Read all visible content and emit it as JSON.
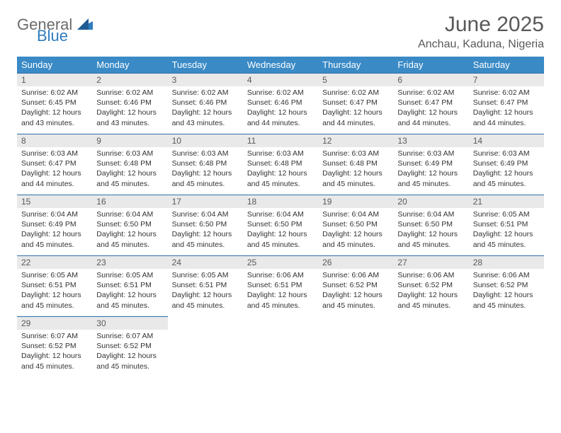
{
  "brand": {
    "general": "General",
    "blue": "Blue"
  },
  "title": "June 2025",
  "location": "Anchau, Kaduna, Nigeria",
  "colors": {
    "header_bg": "#3a8ac6",
    "header_text": "#ffffff",
    "daynum_bg": "#e9e9e9",
    "daynum_border": "#2f6fa8",
    "title_color": "#595959",
    "body_text": "#333333"
  },
  "weekdays": [
    "Sunday",
    "Monday",
    "Tuesday",
    "Wednesday",
    "Thursday",
    "Friday",
    "Saturday"
  ],
  "days": [
    {
      "n": "1",
      "sr": "6:02 AM",
      "ss": "6:45 PM",
      "dl": "12 hours and 43 minutes."
    },
    {
      "n": "2",
      "sr": "6:02 AM",
      "ss": "6:46 PM",
      "dl": "12 hours and 43 minutes."
    },
    {
      "n": "3",
      "sr": "6:02 AM",
      "ss": "6:46 PM",
      "dl": "12 hours and 43 minutes."
    },
    {
      "n": "4",
      "sr": "6:02 AM",
      "ss": "6:46 PM",
      "dl": "12 hours and 44 minutes."
    },
    {
      "n": "5",
      "sr": "6:02 AM",
      "ss": "6:47 PM",
      "dl": "12 hours and 44 minutes."
    },
    {
      "n": "6",
      "sr": "6:02 AM",
      "ss": "6:47 PM",
      "dl": "12 hours and 44 minutes."
    },
    {
      "n": "7",
      "sr": "6:02 AM",
      "ss": "6:47 PM",
      "dl": "12 hours and 44 minutes."
    },
    {
      "n": "8",
      "sr": "6:03 AM",
      "ss": "6:47 PM",
      "dl": "12 hours and 44 minutes."
    },
    {
      "n": "9",
      "sr": "6:03 AM",
      "ss": "6:48 PM",
      "dl": "12 hours and 45 minutes."
    },
    {
      "n": "10",
      "sr": "6:03 AM",
      "ss": "6:48 PM",
      "dl": "12 hours and 45 minutes."
    },
    {
      "n": "11",
      "sr": "6:03 AM",
      "ss": "6:48 PM",
      "dl": "12 hours and 45 minutes."
    },
    {
      "n": "12",
      "sr": "6:03 AM",
      "ss": "6:48 PM",
      "dl": "12 hours and 45 minutes."
    },
    {
      "n": "13",
      "sr": "6:03 AM",
      "ss": "6:49 PM",
      "dl": "12 hours and 45 minutes."
    },
    {
      "n": "14",
      "sr": "6:03 AM",
      "ss": "6:49 PM",
      "dl": "12 hours and 45 minutes."
    },
    {
      "n": "15",
      "sr": "6:04 AM",
      "ss": "6:49 PM",
      "dl": "12 hours and 45 minutes."
    },
    {
      "n": "16",
      "sr": "6:04 AM",
      "ss": "6:50 PM",
      "dl": "12 hours and 45 minutes."
    },
    {
      "n": "17",
      "sr": "6:04 AM",
      "ss": "6:50 PM",
      "dl": "12 hours and 45 minutes."
    },
    {
      "n": "18",
      "sr": "6:04 AM",
      "ss": "6:50 PM",
      "dl": "12 hours and 45 minutes."
    },
    {
      "n": "19",
      "sr": "6:04 AM",
      "ss": "6:50 PM",
      "dl": "12 hours and 45 minutes."
    },
    {
      "n": "20",
      "sr": "6:04 AM",
      "ss": "6:50 PM",
      "dl": "12 hours and 45 minutes."
    },
    {
      "n": "21",
      "sr": "6:05 AM",
      "ss": "6:51 PM",
      "dl": "12 hours and 45 minutes."
    },
    {
      "n": "22",
      "sr": "6:05 AM",
      "ss": "6:51 PM",
      "dl": "12 hours and 45 minutes."
    },
    {
      "n": "23",
      "sr": "6:05 AM",
      "ss": "6:51 PM",
      "dl": "12 hours and 45 minutes."
    },
    {
      "n": "24",
      "sr": "6:05 AM",
      "ss": "6:51 PM",
      "dl": "12 hours and 45 minutes."
    },
    {
      "n": "25",
      "sr": "6:06 AM",
      "ss": "6:51 PM",
      "dl": "12 hours and 45 minutes."
    },
    {
      "n": "26",
      "sr": "6:06 AM",
      "ss": "6:52 PM",
      "dl": "12 hours and 45 minutes."
    },
    {
      "n": "27",
      "sr": "6:06 AM",
      "ss": "6:52 PM",
      "dl": "12 hours and 45 minutes."
    },
    {
      "n": "28",
      "sr": "6:06 AM",
      "ss": "6:52 PM",
      "dl": "12 hours and 45 minutes."
    },
    {
      "n": "29",
      "sr": "6:07 AM",
      "ss": "6:52 PM",
      "dl": "12 hours and 45 minutes."
    },
    {
      "n": "30",
      "sr": "6:07 AM",
      "ss": "6:52 PM",
      "dl": "12 hours and 45 minutes."
    }
  ],
  "labels": {
    "sunrise": "Sunrise: ",
    "sunset": "Sunset: ",
    "daylight": "Daylight: "
  }
}
